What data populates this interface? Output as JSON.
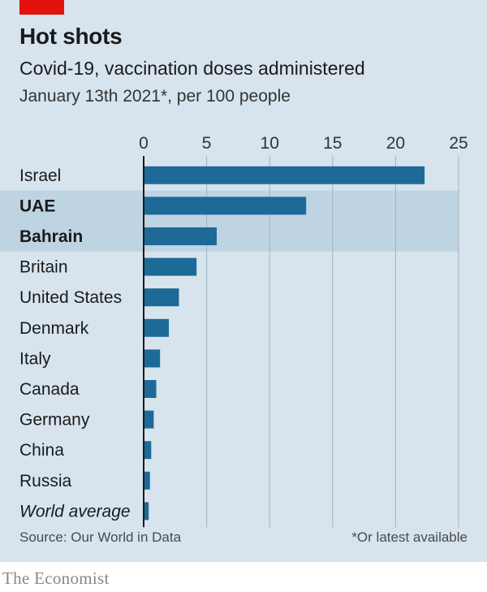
{
  "header": {
    "title": "Hot shots",
    "subtitle": "Covid-19, vaccination doses administered",
    "subtitle2": "January 13th 2021*, per 100 people"
  },
  "footer": {
    "source": "Source: Our World in Data",
    "footnote": "*Or latest available",
    "publisher": "The Economist"
  },
  "colors": {
    "bar": "#1d6a99",
    "highlight_band": "#bfd4e3",
    "background": "#d7e4ee",
    "gridline": "#9fb3c2",
    "accent_red": "#e3120b"
  },
  "chart_data": {
    "type": "bar",
    "orientation": "horizontal",
    "axis_position": "top",
    "xlim": [
      0,
      25
    ],
    "xticks": [
      0,
      5,
      10,
      15,
      20,
      25
    ],
    "grid": true,
    "categories": [
      "Israel",
      "UAE",
      "Bahrain",
      "Britain",
      "United States",
      "Denmark",
      "Italy",
      "Canada",
      "Germany",
      "China",
      "Russia",
      "World average"
    ],
    "values": [
      22.3,
      12.9,
      5.8,
      4.2,
      2.8,
      2.0,
      1.3,
      1.0,
      0.8,
      0.6,
      0.5,
      0.4
    ],
    "highlighted": [
      "UAE",
      "Bahrain"
    ],
    "italic": [
      "World average"
    ]
  }
}
